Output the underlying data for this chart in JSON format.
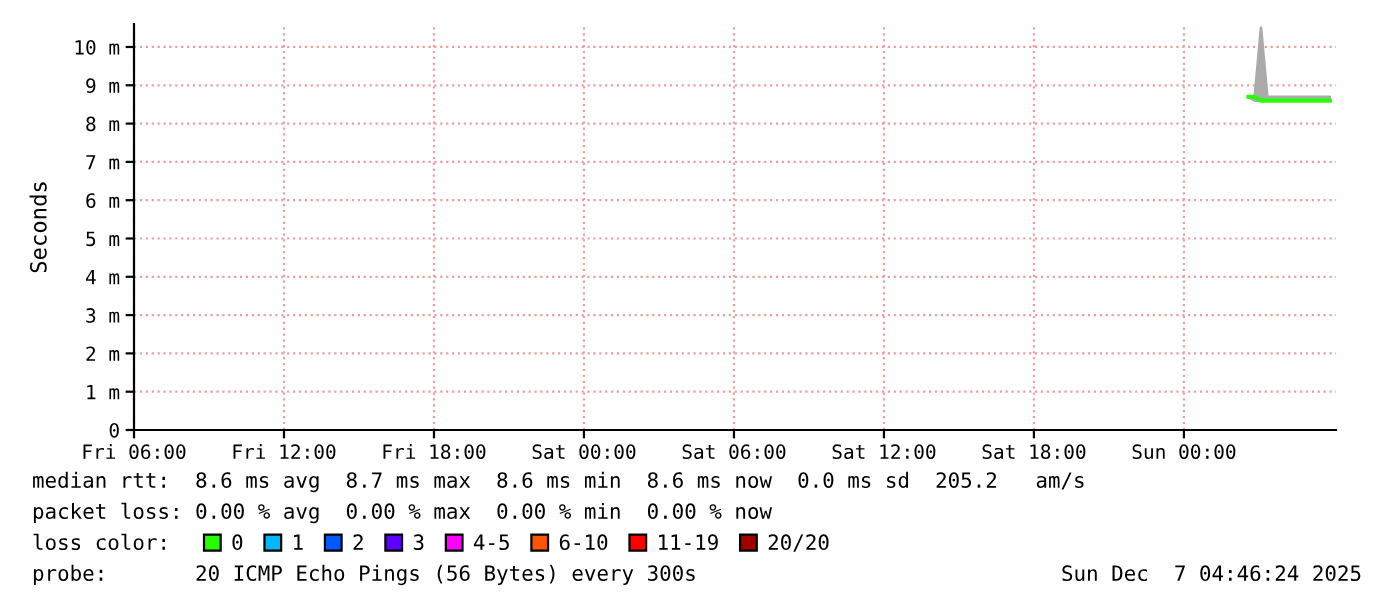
{
  "chart_data": {
    "type": "line",
    "ylabel": "Seconds",
    "legend_title": "loss color:",
    "x": [
      "2025-12-07T02:35",
      "2025-12-07T02:50",
      "2025-12-07T03:05",
      "2025-12-07T03:20",
      "2025-12-07T03:35",
      "2025-12-07T03:50",
      "2025-12-07T04:05",
      "2025-12-07T04:20",
      "2025-12-07T04:35",
      "2025-12-07T04:50",
      "2025-12-07T05:05",
      "2025-12-07T05:20",
      "2025-12-07T05:35",
      "2025-12-07T05:50"
    ],
    "series": [
      {
        "name": "0",
        "color": "#26ff00",
        "values": [
          8.7,
          8.7,
          8.6,
          8.6,
          8.6,
          8.6,
          8.6,
          8.6,
          8.6,
          8.6,
          8.6,
          8.6,
          8.6,
          8.6
        ],
        "lower": [
          8.7,
          8.6,
          8.6,
          8.6,
          8.6,
          8.6,
          8.6,
          8.6,
          8.6,
          8.6,
          8.6,
          8.6,
          8.6,
          8.6
        ],
        "upper": [
          8.7,
          8.7,
          10.5,
          8.7,
          8.7,
          8.7,
          8.7,
          8.7,
          8.7,
          8.7,
          8.7,
          8.7,
          8.7,
          8.7
        ]
      },
      {
        "name": "1",
        "color": "#00b8ff",
        "values": [
          null,
          null,
          null,
          null,
          null,
          null,
          null,
          null,
          null,
          null,
          null,
          null,
          null,
          null
        ]
      },
      {
        "name": "2",
        "color": "#0059ff",
        "values": [
          null,
          null,
          null,
          null,
          null,
          null,
          null,
          null,
          null,
          null,
          null,
          null,
          null,
          null
        ]
      },
      {
        "name": "3",
        "color": "#5e00ff",
        "values": [
          null,
          null,
          null,
          null,
          null,
          null,
          null,
          null,
          null,
          null,
          null,
          null,
          null,
          null
        ]
      },
      {
        "name": "4-5",
        "color": "#ff00ff",
        "values": [
          null,
          null,
          null,
          null,
          null,
          null,
          null,
          null,
          null,
          null,
          null,
          null,
          null,
          null
        ]
      },
      {
        "name": "6-10",
        "color": "#ff5500",
        "values": [
          null,
          null,
          null,
          null,
          null,
          null,
          null,
          null,
          null,
          null,
          null,
          null,
          null,
          null
        ]
      },
      {
        "name": "11-19",
        "color": "#ff0000",
        "values": [
          null,
          null,
          null,
          null,
          null,
          null,
          null,
          null,
          null,
          null,
          null,
          null,
          null,
          null
        ]
      },
      {
        "name": "20/20",
        "color": "#a10000",
        "values": [
          null,
          null,
          null,
          null,
          null,
          null,
          null,
          null,
          null,
          null,
          null,
          null,
          null,
          null
        ]
      }
    ],
    "xlim": [
      "2025-12-05T06:00",
      "2025-12-07T06:05"
    ],
    "xticks": [
      {
        "value": "2025-12-05T06:00",
        "label": "Fri 06:00"
      },
      {
        "value": "2025-12-05T12:00",
        "label": "Fri 12:00"
      },
      {
        "value": "2025-12-05T18:00",
        "label": "Fri 18:00"
      },
      {
        "value": "2025-12-06T00:00",
        "label": "Sat 00:00"
      },
      {
        "value": "2025-12-06T06:00",
        "label": "Sat 06:00"
      },
      {
        "value": "2025-12-06T12:00",
        "label": "Sat 12:00"
      },
      {
        "value": "2025-12-06T18:00",
        "label": "Sat 18:00"
      },
      {
        "value": "2025-12-07T00:00",
        "label": "Sun 00:00"
      }
    ],
    "ylim": [
      0,
      10.6
    ],
    "yticks": [
      0,
      {
        "value": 1,
        "label": "1 m"
      },
      {
        "value": 2,
        "label": "2 m"
      },
      {
        "value": 3,
        "label": "3 m"
      },
      {
        "value": 4,
        "label": "4 m"
      },
      {
        "value": 5,
        "label": "5 m"
      },
      {
        "value": 6,
        "label": "6 m"
      },
      {
        "value": 7,
        "label": "7 m"
      },
      {
        "value": 8,
        "label": "8 m"
      },
      {
        "value": 9,
        "label": "9 m"
      },
      {
        "value": 10,
        "label": "10 m"
      }
    ],
    "grid": true,
    "legend": "bottom",
    "marker": "none",
    "line_style": "solid",
    "annotations": [
      "median rtt:  8.6 ms avg  8.7 ms max  8.6 ms min  8.6 ms now  0.0 ms sd  205.2   am/s",
      "packet loss: 0.00 % avg  0.00 % max  0.00 % min  0.00 % now",
      "probe:       20 ICMP Echo Pings (56 Bytes) every 300s",
      "Sun Dec  7 04:46:24 2025"
    ]
  }
}
